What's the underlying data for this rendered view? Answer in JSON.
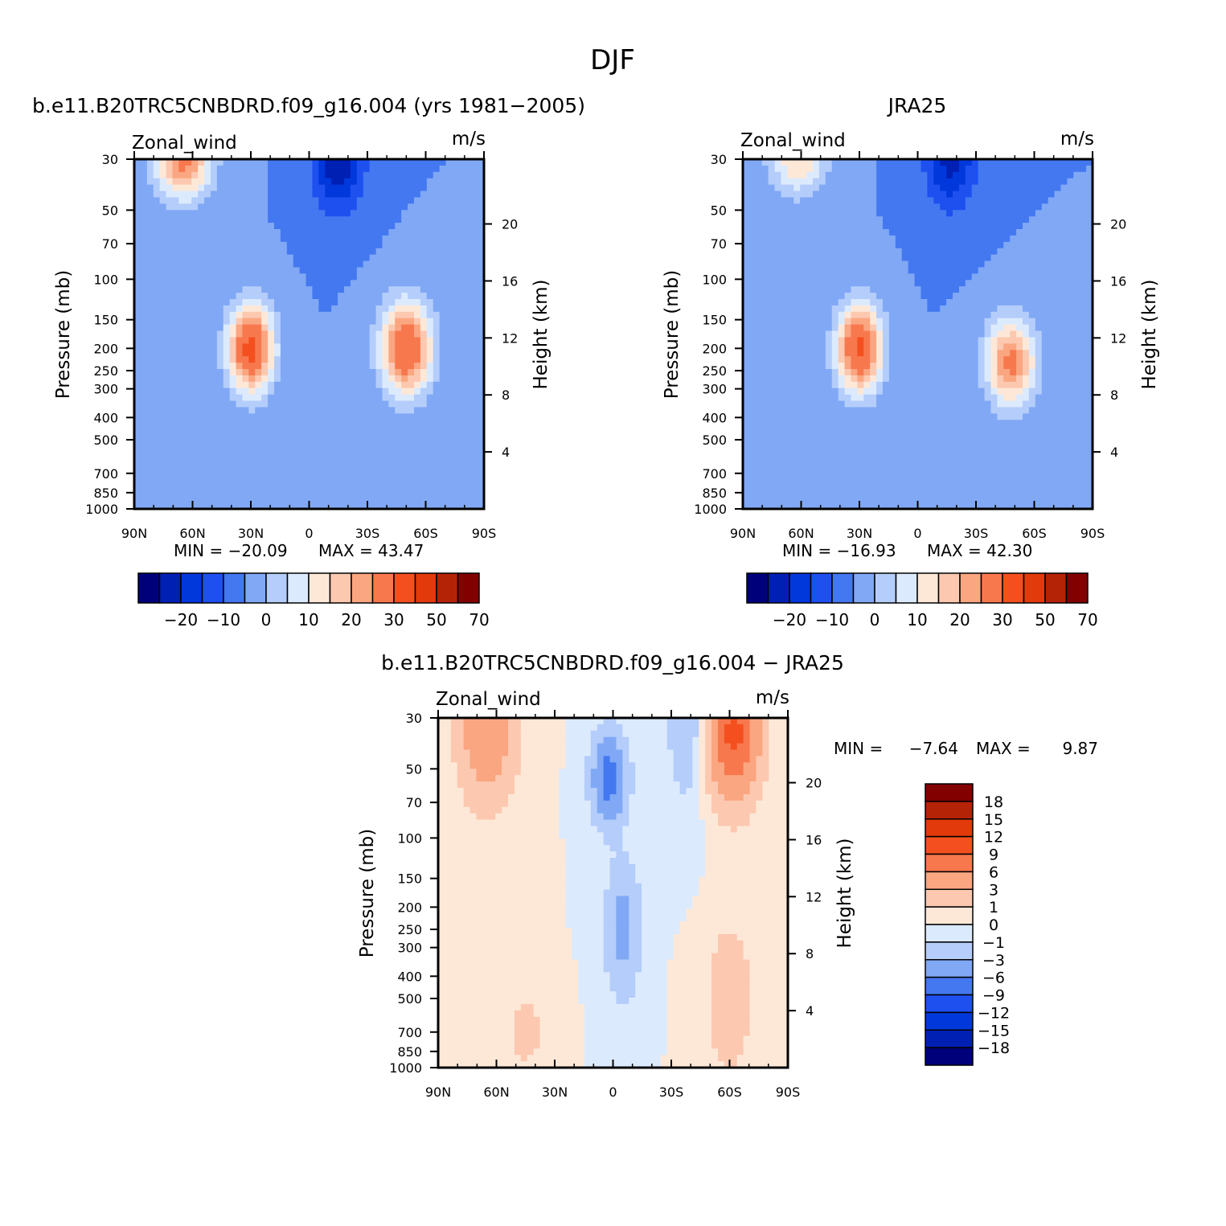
{
  "figure": {
    "title": "DJF"
  },
  "colors": {
    "main": [
      "#00007a",
      "#0020b4",
      "#0038dc",
      "#1e50f0",
      "#4478f0",
      "#80a8f5",
      "#b4cdfa",
      "#dceafd",
      "#fde8d8",
      "#fcc8b0",
      "#faa680",
      "#f8784e",
      "#f4501f",
      "#e23a0a",
      "#b42306",
      "#820000"
    ],
    "diff": [
      "#00007a",
      "#0020b4",
      "#0038dc",
      "#1e50f0",
      "#4478f0",
      "#80a8f5",
      "#b4cdfa",
      "#dceafd",
      "#fde8d8",
      "#fcc8b0",
      "#faa680",
      "#f8784e",
      "#f4501f",
      "#e23a0a",
      "#b42306",
      "#820000"
    ]
  },
  "chart_data": [
    {
      "type": "contour",
      "title": "b.e11.B20TRC5CNBDRD.f09_g16.004 (yrs 1981−2005)",
      "left_label": "Zonal_wind",
      "right_label": "m/s",
      "ylabel": "Pressure (mb)",
      "y2label": "Height (km)",
      "x_ticks": [
        "90N",
        "60N",
        "30N",
        "0",
        "30S",
        "60S",
        "90S"
      ],
      "y_ticks": [
        "30",
        "50",
        "70",
        "100",
        "150",
        "200",
        "250",
        "300",
        "400",
        "500",
        "700",
        "850",
        "1000"
      ],
      "y2_ticks": [
        "20",
        "16",
        "12",
        "8",
        "4"
      ],
      "min_label": "MIN = −20.09",
      "max_label": "MAX = 43.47",
      "colorbar_labels": [
        "−20",
        "−10",
        "0",
        "10",
        "20",
        "30",
        "50",
        "70"
      ],
      "palette": "main",
      "jets": [
        {
          "lat": 30,
          "p": 200,
          "u": 43.47,
          "slat": 8,
          "slogp": 0.3
        },
        {
          "lat": -50,
          "p": 200,
          "u": 40,
          "slat": 9,
          "slogp": 0.32
        },
        {
          "lat": 65,
          "p": 30,
          "u": 32,
          "slat": 10,
          "slogp": 0.28
        },
        {
          "lat": -15,
          "p": 30,
          "u": -20.09,
          "slat": 9,
          "slogp": 0.35
        }
      ]
    },
    {
      "type": "contour",
      "title": "JRA25",
      "left_label": "Zonal_wind",
      "right_label": "m/s",
      "ylabel": "Pressure (mb)",
      "y2label": "Height (km)",
      "x_ticks": [
        "90N",
        "60N",
        "30N",
        "0",
        "30S",
        "60S",
        "90S"
      ],
      "y_ticks": [
        "30",
        "50",
        "70",
        "100",
        "150",
        "200",
        "250",
        "300",
        "400",
        "500",
        "700",
        "850",
        "1000"
      ],
      "y2_ticks": [
        "20",
        "16",
        "12",
        "8",
        "4"
      ],
      "min_label": "MIN = −16.93",
      "max_label": "MAX = 42.30",
      "colorbar_labels": [
        "−20",
        "−10",
        "0",
        "10",
        "20",
        "30",
        "50",
        "70"
      ],
      "palette": "main",
      "jets": [
        {
          "lat": 30,
          "p": 200,
          "u": 42.3,
          "slat": 8,
          "slogp": 0.3
        },
        {
          "lat": -48,
          "p": 230,
          "u": 32,
          "slat": 9,
          "slogp": 0.3
        },
        {
          "lat": 62,
          "p": 30,
          "u": 20,
          "slat": 10,
          "slogp": 0.25
        },
        {
          "lat": -17,
          "p": 30,
          "u": -16.93,
          "slat": 9,
          "slogp": 0.35
        }
      ]
    },
    {
      "type": "contour",
      "title": "b.e11.B20TRC5CNBDRD.f09_g16.004 − JRA25",
      "left_label": "Zonal_wind",
      "right_label": "m/s",
      "ylabel": "Pressure (mb)",
      "y2label": "Height (km)",
      "x_ticks": [
        "90N",
        "60N",
        "30N",
        "0",
        "30S",
        "60S",
        "90S"
      ],
      "y_ticks": [
        "30",
        "50",
        "70",
        "100",
        "150",
        "200",
        "250",
        "300",
        "400",
        "500",
        "700",
        "850",
        "1000"
      ],
      "y2_ticks": [
        "20",
        "16",
        "12",
        "8",
        "4"
      ],
      "min_label": "MIN =",
      "min_value": "−7.64",
      "max_label": "MAX =",
      "max_value": "9.87",
      "colorbar_labels": [
        "18",
        "15",
        "12",
        "9",
        "6",
        "3",
        "1",
        "0",
        "−1",
        "−3",
        "−6",
        "−9",
        "−12",
        "−15",
        "−18"
      ],
      "palette": "diff",
      "jets": [
        {
          "lat": 65,
          "p": 30,
          "u": 6,
          "slat": 10,
          "slogp": 0.55
        },
        {
          "lat": -62,
          "p": 35,
          "u": 9.87,
          "slat": 9,
          "slogp": 0.45
        },
        {
          "lat": -60,
          "p": 500,
          "u": 2.5,
          "slat": 8,
          "slogp": 0.5
        },
        {
          "lat": 2,
          "p": 55,
          "u": -7.64,
          "slat": 6,
          "slogp": 0.3
        },
        {
          "lat": -5,
          "p": 250,
          "u": -4,
          "slat": 6,
          "slogp": 0.45
        },
        {
          "lat": -38,
          "p": 30,
          "u": -2.5,
          "slat": 7,
          "slogp": 0.6
        },
        {
          "lat": 45,
          "p": 700,
          "u": 1.5,
          "slat": 8,
          "slogp": 0.3
        }
      ]
    }
  ]
}
